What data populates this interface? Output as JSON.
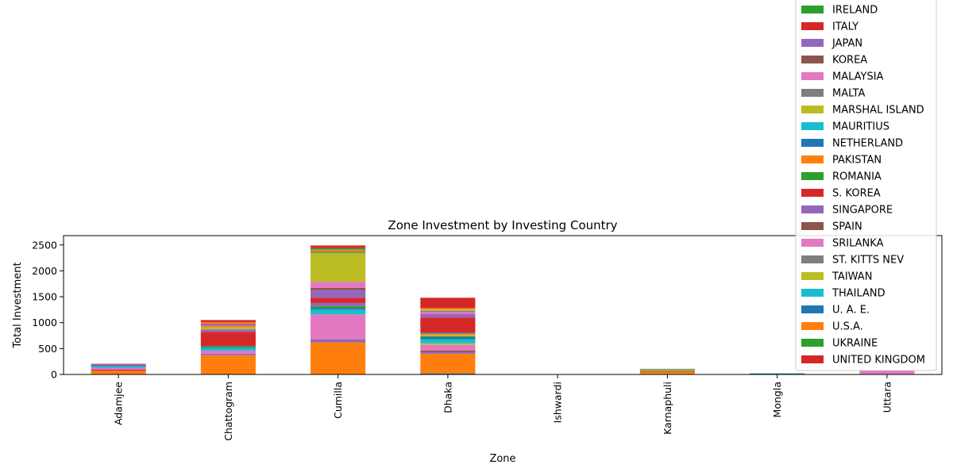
{
  "chart_data": {
    "type": "bar",
    "stacked": true,
    "title": "Zone Investment by Investing Country",
    "xlabel": "Zone",
    "ylabel": "Total Investment",
    "ylim": [
      0,
      2680
    ],
    "yticks": [
      0,
      500,
      1000,
      1500,
      2000,
      2500
    ],
    "grid": false,
    "legend_position": "upper-right",
    "categories": [
      "Adamjee",
      "Chattogram",
      "Cumilla",
      "Dhaka",
      "Ishwardi",
      "Karnaphuli",
      "Mongla",
      "Uttara"
    ],
    "series": [
      {
        "name": "IRELAND",
        "color": "#2ca02c",
        "values": [
          0,
          0,
          0,
          0,
          0,
          0,
          0,
          0
        ]
      },
      {
        "name": "ITALY",
        "color": "#d62728",
        "values": [
          0,
          0,
          0,
          0,
          0,
          0,
          0,
          0
        ]
      },
      {
        "name": "JAPAN",
        "color": "#9467bd",
        "values": [
          0,
          0,
          60,
          0,
          0,
          0,
          0,
          0
        ]
      },
      {
        "name": "KOREA",
        "color": "#8c564b",
        "values": [
          0,
          0,
          0,
          0,
          0,
          0,
          0,
          0
        ]
      },
      {
        "name": "MALAYSIA",
        "color": "#e377c2",
        "values": [
          0,
          0,
          0,
          0,
          0,
          0,
          0,
          0
        ]
      },
      {
        "name": "MALTA",
        "color": "#7f7f7f",
        "values": [
          0,
          0,
          0,
          0,
          0,
          0,
          0,
          0
        ]
      },
      {
        "name": "MARSHAL ISLAND",
        "color": "#bcbd22",
        "values": [
          0,
          0,
          0,
          0,
          0,
          0,
          0,
          0
        ]
      },
      {
        "name": "MAURITIUS",
        "color": "#17becf",
        "values": [
          0,
          0,
          0,
          0,
          0,
          0,
          0,
          0
        ]
      },
      {
        "name": "NETHERLAND",
        "color": "#1f77b4",
        "values": [
          0,
          0,
          0,
          20,
          0,
          0,
          0,
          0
        ]
      },
      {
        "name": "PAKISTAN",
        "color": "#ff7f0e",
        "values": [
          0,
          0,
          0,
          0,
          0,
          0,
          0,
          0
        ]
      },
      {
        "name": "ROMANIA",
        "color": "#2ca02c",
        "values": [
          0,
          0,
          0,
          0,
          0,
          0,
          0,
          0
        ]
      },
      {
        "name": "S. KOREA",
        "color": "#d62728",
        "values": [
          0,
          0,
          100,
          290,
          0,
          0,
          0,
          0
        ]
      },
      {
        "name": "SINGAPORE",
        "color": "#9467bd",
        "values": [
          0,
          40,
          150,
          70,
          0,
          0,
          0,
          0
        ]
      },
      {
        "name": "SPAIN",
        "color": "#8c564b",
        "values": [
          0,
          0,
          40,
          0,
          0,
          0,
          0,
          0
        ]
      },
      {
        "name": "SRILANKA",
        "color": "#e377c2",
        "values": [
          0,
          0,
          120,
          40,
          0,
          0,
          0,
          0
        ]
      },
      {
        "name": "ST. KITTS NEV",
        "color": "#7f7f7f",
        "values": [
          0,
          0,
          0,
          20,
          0,
          0,
          0,
          0
        ]
      },
      {
        "name": "TAIWAN",
        "color": "#bcbd22",
        "values": [
          0,
          0,
          560,
          30,
          0,
          0,
          0,
          0
        ]
      },
      {
        "name": "THAILAND",
        "color": "#17becf",
        "values": [
          0,
          0,
          0,
          0,
          0,
          0,
          0,
          0
        ]
      },
      {
        "name": "U. A. E.",
        "color": "#1f77b4",
        "values": [
          0,
          0,
          20,
          0,
          0,
          0,
          0,
          0
        ]
      },
      {
        "name": "U.S.A.",
        "color": "#ff7f0e",
        "values": [
          0,
          30,
          40,
          20,
          0,
          0,
          0,
          0
        ]
      },
      {
        "name": "UKRAINE",
        "color": "#2ca02c",
        "values": [
          0,
          0,
          30,
          0,
          0,
          0,
          0,
          0
        ]
      },
      {
        "name": "UNITED KINGDOM",
        "color": "#d62728",
        "values": [
          0,
          40,
          50,
          200,
          0,
          0,
          0,
          0
        ]
      }
    ],
    "lower_segments": [
      {
        "color": "#1f77b4",
        "values": [
          0,
          0,
          0,
          20,
          0,
          10,
          20,
          0
        ]
      },
      {
        "color": "#ff7f0e",
        "values": [
          70,
          370,
          620,
          380,
          0,
          40,
          0,
          10
        ]
      },
      {
        "color": "#2ca02c",
        "values": [
          0,
          0,
          0,
          0,
          0,
          0,
          0,
          0
        ]
      },
      {
        "color": "#d62728",
        "values": [
          20,
          0,
          0,
          0,
          0,
          10,
          0,
          0
        ]
      },
      {
        "color": "#9467bd",
        "values": [
          10,
          30,
          60,
          30,
          0,
          0,
          0,
          0
        ]
      },
      {
        "color": "#8c564b",
        "values": [
          0,
          0,
          0,
          30,
          0,
          10,
          0,
          0
        ]
      },
      {
        "color": "#e377c2",
        "values": [
          30,
          60,
          480,
          110,
          0,
          0,
          0,
          60
        ]
      },
      {
        "color": "#7f7f7f",
        "values": [
          0,
          0,
          0,
          0,
          0,
          0,
          0,
          0
        ]
      },
      {
        "color": "#bcbd22",
        "values": [
          0,
          0,
          0,
          30,
          0,
          20,
          0,
          0
        ]
      },
      {
        "color": "#17becf",
        "values": [
          30,
          50,
          90,
          80,
          0,
          0,
          0,
          0
        ]
      },
      {
        "color": "#1f77b4",
        "values": [
          20,
          20,
          30,
          40,
          0,
          10,
          0,
          0
        ]
      },
      {
        "color": "#ff7f0e",
        "values": [
          0,
          0,
          0,
          0,
          0,
          0,
          0,
          0
        ]
      },
      {
        "color": "#2ca02c",
        "values": [
          0,
          20,
          40,
          20,
          0,
          0,
          0,
          0
        ]
      },
      {
        "color": "#d62728",
        "values": [
          10,
          270,
          0,
          0,
          0,
          0,
          0,
          0
        ]
      },
      {
        "color": "#9467bd",
        "values": [
          10,
          50,
          0,
          0,
          0,
          0,
          0,
          0
        ]
      },
      {
        "color": "#e377c2",
        "values": [
          10,
          0,
          0,
          0,
          0,
          0,
          0,
          0
        ]
      },
      {
        "color": "#bcbd22",
        "values": [
          0,
          40,
          0,
          20,
          0,
          10,
          0,
          0
        ]
      },
      {
        "color": "#ff7f0e",
        "values": [
          0,
          30,
          0,
          30,
          0,
          0,
          0,
          0
        ]
      }
    ]
  }
}
